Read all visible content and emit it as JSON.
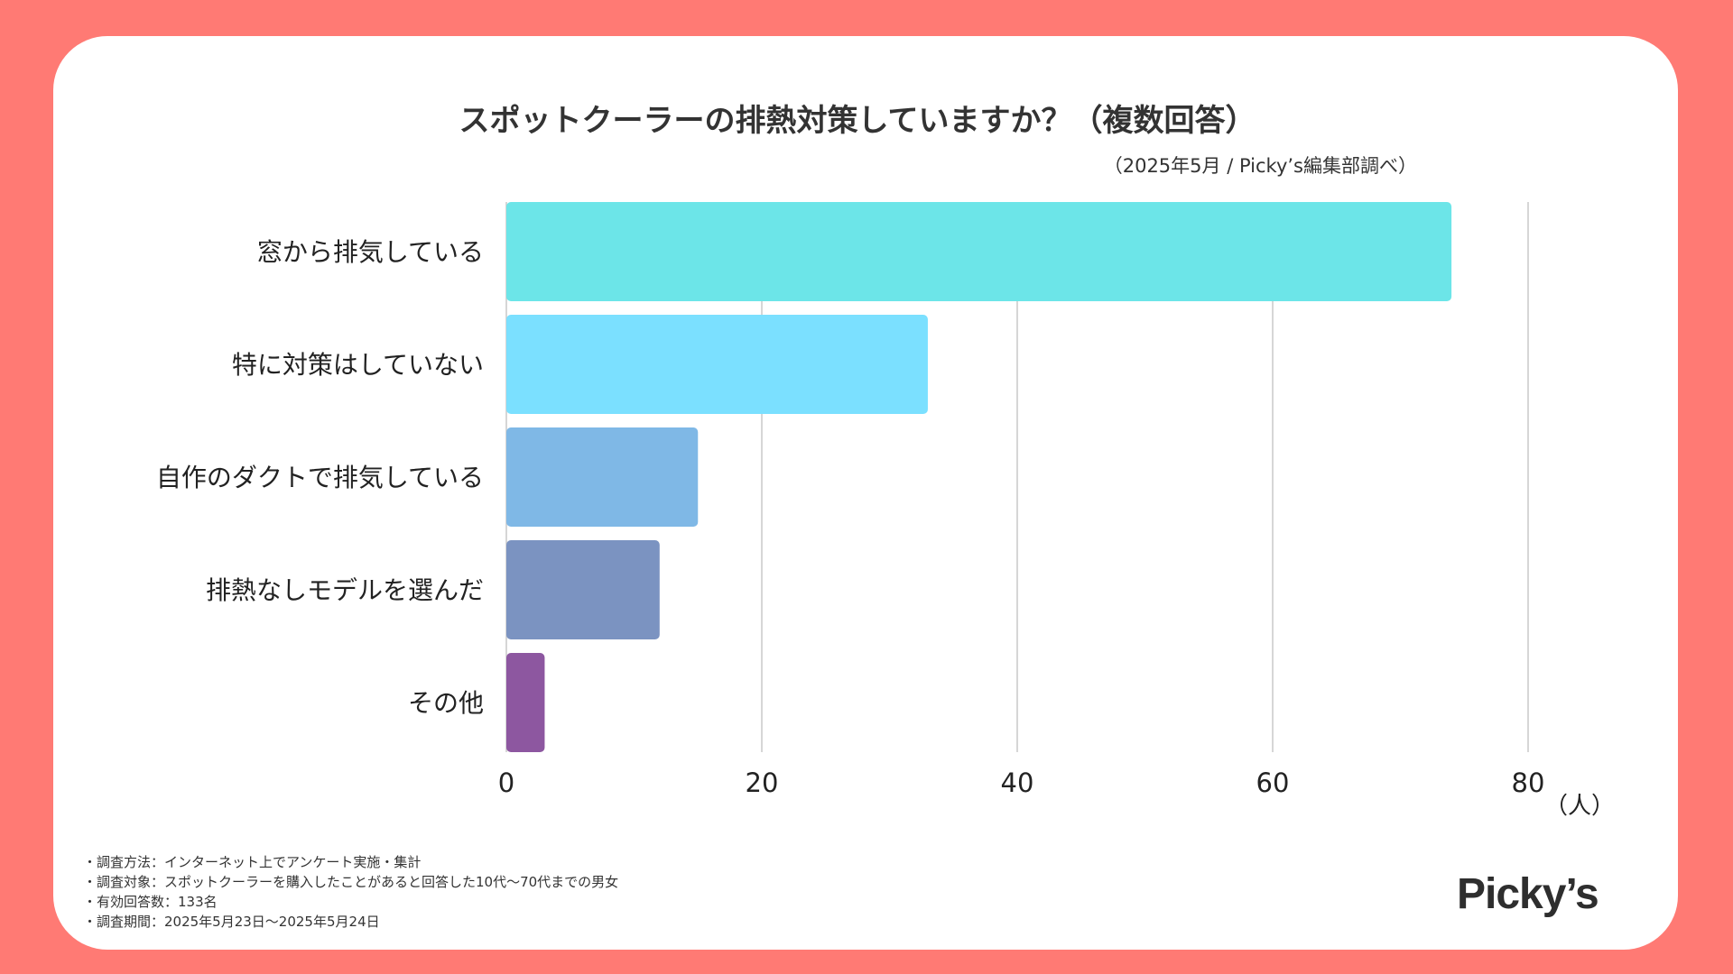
{
  "chart_data": {
    "type": "bar",
    "orientation": "horizontal",
    "title": "スポットクーラーの排熱対策していますか？（複数回答）",
    "subtitle": "（2025年5月 / Picky’s編集部調べ）",
    "categories": [
      "窓から排気している",
      "特に対策はしていない",
      "自作のダクトで排気している",
      "排熱なしモデルを選んだ",
      "その他"
    ],
    "values": [
      74,
      33,
      15,
      12,
      3
    ],
    "colors": [
      "#6ce5e8",
      "#7be0ff",
      "#7fb8e6",
      "#7b93c1",
      "#8d57a0"
    ],
    "xticks": [
      "0",
      "20",
      "40",
      "60",
      "80"
    ],
    "xlim": [
      0,
      80
    ],
    "xunit": "（人）",
    "grid": true
  },
  "footer": {
    "notes": [
      "・調査方法：インターネット上でアンケート実施・集計",
      "・調査対象：スポットクーラーを購入したことがあると回答した10代〜70代までの男女",
      "・有効回答数：133名",
      "・調査期間：2025年5月23日〜2025年5月24日"
    ]
  },
  "logo": "Picky’s"
}
